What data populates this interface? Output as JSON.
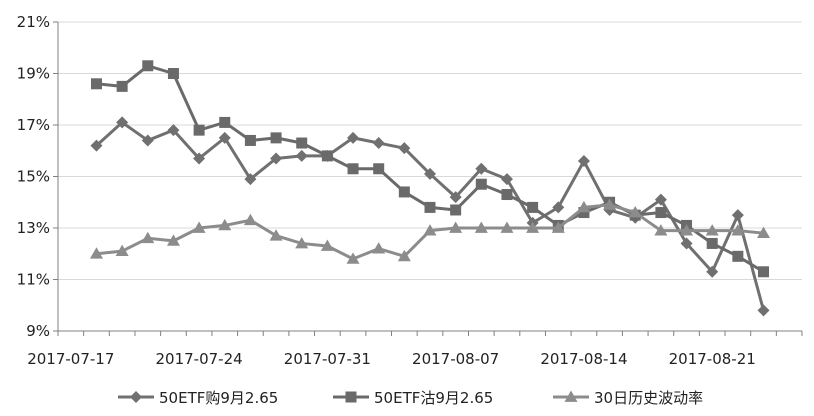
{
  "chart_data": {
    "type": "line",
    "title": "",
    "xlabel": "",
    "ylabel": "",
    "ylim": [
      0.09,
      0.21
    ],
    "y_ticks": [
      "9%",
      "11%",
      "13%",
      "15%",
      "17%",
      "19%",
      "21%"
    ],
    "x_ticks": [
      "2017-07-17",
      "2017-07-24",
      "2017-07-31",
      "2017-08-07",
      "2017-08-14",
      "2017-08-21"
    ],
    "grid": "horizontal",
    "legend_position": "bottom",
    "x": [
      "2017-07-17",
      "2017-07-18",
      "2017-07-19",
      "2017-07-20",
      "2017-07-21",
      "2017-07-24",
      "2017-07-25",
      "2017-07-26",
      "2017-07-27",
      "2017-07-28",
      "2017-07-31",
      "2017-08-01",
      "2017-08-02",
      "2017-08-03",
      "2017-08-04",
      "2017-08-07",
      "2017-08-08",
      "2017-08-09",
      "2017-08-10",
      "2017-08-11",
      "2017-08-14",
      "2017-08-15",
      "2017-08-16",
      "2017-08-17",
      "2017-08-18",
      "2017-08-21",
      "2017-08-22",
      "2017-08-23",
      "2017-08-24"
    ],
    "series": [
      {
        "name": "50ETF购9月2.65",
        "marker": "diamond",
        "color": "#707070",
        "values": [
          null,
          0.162,
          0.171,
          0.164,
          0.168,
          0.157,
          0.165,
          0.149,
          0.157,
          0.158,
          0.158,
          0.165,
          0.163,
          0.161,
          0.151,
          0.142,
          0.153,
          0.149,
          0.132,
          0.138,
          0.156,
          0.137,
          0.134,
          0.141,
          0.124,
          0.113,
          0.135,
          0.098,
          null
        ]
      },
      {
        "name": "50ETF沽9月2.65",
        "marker": "square",
        "color": "#6a6a6a",
        "values": [
          null,
          0.186,
          0.185,
          0.193,
          0.19,
          0.168,
          0.171,
          0.164,
          0.165,
          0.163,
          0.158,
          0.153,
          0.153,
          0.144,
          0.138,
          0.137,
          0.147,
          0.143,
          0.138,
          0.131,
          0.136,
          0.14,
          0.135,
          0.136,
          0.131,
          0.124,
          0.119,
          0.113,
          null
        ]
      },
      {
        "name": "30日历史波动率",
        "marker": "triangle",
        "color": "#8c8c8c",
        "values": [
          null,
          0.12,
          0.121,
          0.126,
          0.125,
          0.13,
          0.131,
          0.133,
          0.127,
          0.124,
          0.123,
          0.118,
          0.122,
          0.119,
          0.129,
          0.13,
          0.13,
          0.13,
          0.13,
          0.13,
          0.138,
          0.139,
          0.136,
          0.129,
          0.129,
          0.129,
          0.129,
          0.128,
          null
        ]
      }
    ]
  }
}
